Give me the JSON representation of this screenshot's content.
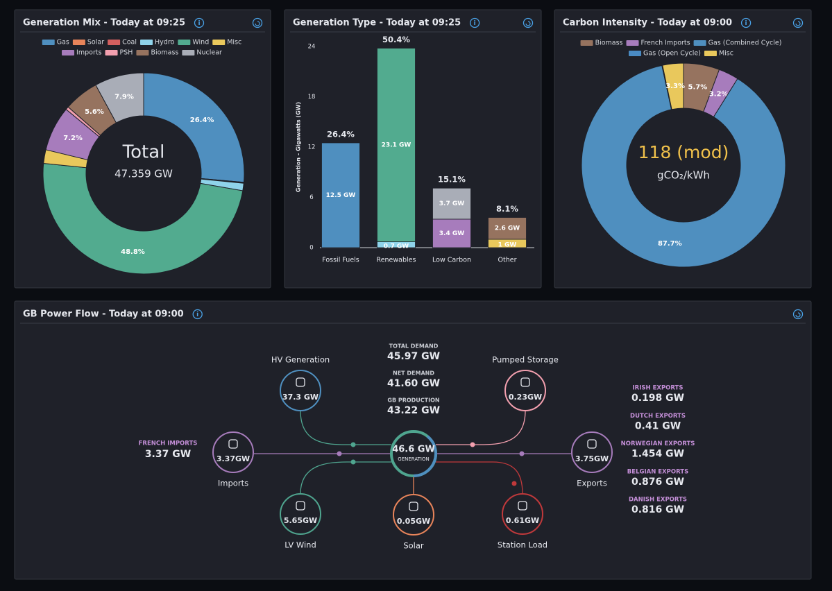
{
  "generation_mix": {
    "title": "Generation Mix - Today at 09:25",
    "categories": [
      "Gas",
      "Solar",
      "Coal",
      "Hydro",
      "Wind",
      "Misc",
      "Imports",
      "PSH",
      "Biomass",
      "Nuclear"
    ],
    "colors": [
      "#4f8fbf",
      "#e8845a",
      "#d35f5f",
      "#8fd3ea",
      "#52ab8f",
      "#e9c85c",
      "#a77cbc",
      "#f29fae",
      "#96735f",
      "#a9adb7"
    ],
    "values": [
      26.4,
      0.1,
      0.05,
      1.2,
      48.8,
      2.2,
      7.2,
      0.5,
      5.6,
      7.9
    ],
    "value_labels": [
      "26.4%",
      null,
      null,
      null,
      "48.8%",
      null,
      "7.2%",
      null,
      "5.6%",
      "7.9%"
    ],
    "center_title": "Total",
    "center_value": "47.359 GW"
  },
  "generation_type": {
    "title": "Generation Type - Today at 09:25",
    "ylabel": "Generation - Gigawatts (GW)",
    "ylim": [
      0,
      24
    ],
    "yticks": [
      0,
      6,
      12,
      18,
      24
    ],
    "categories": [
      "Fossil Fuels",
      "Renewables",
      "Low Carbon",
      "Other"
    ],
    "percent_labels": [
      "26.4%",
      "50.4%",
      "15.1%",
      "8.1%"
    ],
    "segments": [
      [
        {
          "value": 12.5,
          "label": "12.5 GW",
          "color": "#4f8fbf"
        }
      ],
      [
        {
          "value": 0.7,
          "label": "0.7 GW",
          "color": "#8fd3ea"
        },
        {
          "value": 23.1,
          "label": "23.1 GW",
          "color": "#52ab8f"
        }
      ],
      [
        {
          "value": 3.4,
          "label": "3.4 GW",
          "color": "#a77cbc"
        },
        {
          "value": 3.7,
          "label": "3.7 GW",
          "color": "#a9adb7"
        }
      ],
      [
        {
          "value": 1,
          "label": "1 GW",
          "color": "#e9c85c"
        },
        {
          "value": 2.6,
          "label": "2.6 GW",
          "color": "#96735f"
        }
      ]
    ]
  },
  "carbon_intensity": {
    "title": "Carbon Intensity - Today at 09:00",
    "categories": [
      "Biomass",
      "French Imports",
      "Gas (Combined Cycle)",
      "Gas (Open Cycle)",
      "Misc"
    ],
    "colors": [
      "#96735f",
      "#a77cbc",
      "#4f8fbf",
      "#4a8bc4",
      "#e9c85c"
    ],
    "values": [
      5.7,
      3.2,
      87.7,
      0.1,
      3.3
    ],
    "value_labels": [
      "5.7%",
      "3.2%",
      "87.7%",
      null,
      "3.3%"
    ],
    "center_value": "118 (mod)",
    "center_unit": "gCO₂/kWh"
  },
  "power_flow": {
    "title": "GB Power Flow - Today at 09:00",
    "stats": [
      {
        "label": "TOTAL DEMAND",
        "value": "45.97 GW"
      },
      {
        "label": "NET DEMAND",
        "value": "41.60 GW"
      },
      {
        "label": "GB PRODUCTION",
        "value": "43.22 GW"
      }
    ],
    "center": {
      "value": "46.6 GW",
      "label": "GENERATION"
    },
    "nodes": [
      {
        "name": "HV Generation",
        "value": "37.3 GW"
      },
      {
        "name": "Pumped Storage",
        "value": "0.23GW"
      },
      {
        "name": "Imports",
        "value": "3.37GW"
      },
      {
        "name": "Exports",
        "value": "3.75GW"
      },
      {
        "name": "LV Wind",
        "value": "5.65GW"
      },
      {
        "name": "Solar",
        "value": "0.05GW"
      },
      {
        "name": "Station Load",
        "value": "0.61GW"
      }
    ],
    "french_imports": {
      "label": "FRENCH IMPORTS",
      "value": "3.37 GW"
    },
    "exports": [
      {
        "label": "IRISH EXPORTS",
        "value": "0.198 GW"
      },
      {
        "label": "DUTCH EXPORTS",
        "value": "0.41 GW"
      },
      {
        "label": "NORWEGIAN EXPORTS",
        "value": "1.454 GW"
      },
      {
        "label": "BELGIAN EXPORTS",
        "value": "0.876 GW"
      },
      {
        "label": "DANISH EXPORTS",
        "value": "0.816 GW"
      }
    ]
  }
}
